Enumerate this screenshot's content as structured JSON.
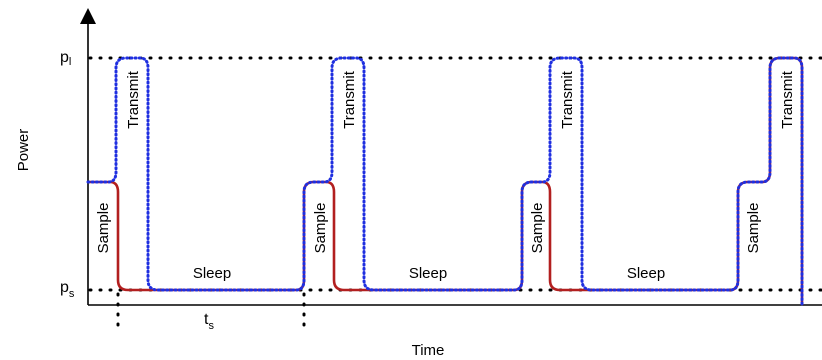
{
  "figure": {
    "axes": {
      "x_label": "Time",
      "y_label": "Power"
    },
    "levels": {
      "high": {
        "base": "p",
        "sub": "l"
      },
      "low": {
        "base": "p",
        "sub": "s"
      }
    },
    "phases": {
      "sample": "Sample",
      "transmit": "Transmit",
      "sleep": "Sleep"
    },
    "interval": {
      "base": "t",
      "sub": "s"
    },
    "colors": {
      "solid_trace": "#b21f1f",
      "dotted_trace": "#1f2fe0",
      "axis": "#000000",
      "guide": "#000000"
    }
  }
}
